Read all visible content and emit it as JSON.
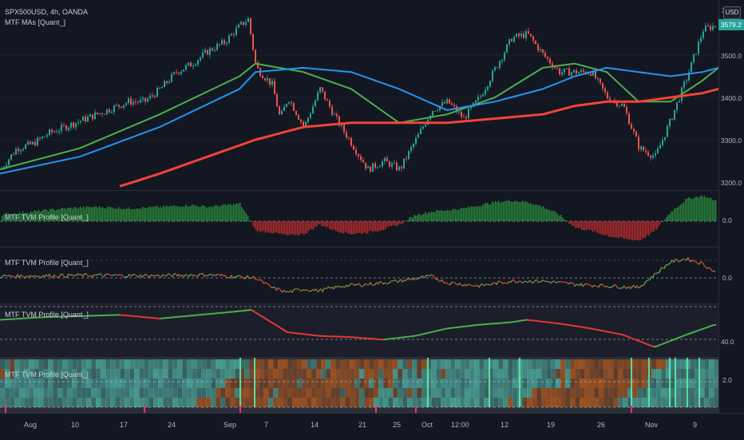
{
  "symbol_line": "SPX500USD, 4h, OANDA",
  "main_indicator": "MTF MAs [Quant_]",
  "currency_badge": "USD",
  "price_badge": "3579.2",
  "main_price_ticks": [
    "3500.0",
    "3400.0",
    "3300.0",
    "3200.0"
  ],
  "main_price_top": "3",
  "sub_panes": [
    {
      "title": "MTF TVM Profile [Quant_]",
      "level": "0.0"
    },
    {
      "title": "MTF TVM Profile [Quant_]",
      "level": "0.0"
    },
    {
      "title": "MTF TVM Profile [Quant_]",
      "level": "40.0"
    },
    {
      "title": "MTF TVM Profile [Quant_]",
      "level": "2.0"
    }
  ],
  "time_axis": [
    "Aug",
    "10",
    "17",
    "24",
    "Sep",
    "7",
    "14",
    "21",
    "25",
    "Oct",
    "12:00",
    "12",
    "19",
    "26",
    "Nov",
    "9"
  ],
  "colors": {
    "background": "#131722",
    "bull": "#26a69a",
    "bear": "#ef5350",
    "ma_fast": "#4caf50",
    "ma_mid": "#2196f3",
    "ma_slow": "#f44336",
    "teal_band": "#4fb3a3",
    "orange_band": "#b55a1e"
  },
  "chart_data": {
    "type": "line",
    "series": [
      {
        "name": "price",
        "x": [
          0,
          20,
          40,
          60,
          80,
          100,
          120,
          140,
          160,
          180,
          200,
          220,
          240,
          260,
          280,
          300,
          310,
          320,
          340,
          350,
          360,
          380,
          400,
          420,
          440,
          460,
          480,
          500,
          520,
          540,
          560,
          580,
          600,
          620,
          640,
          660,
          680,
          700,
          720,
          740,
          760,
          780,
          800,
          820,
          840,
          860,
          880,
          895
        ],
        "values": [
          3230,
          3280,
          3290,
          3315,
          3330,
          3345,
          3360,
          3375,
          3390,
          3390,
          3420,
          3460,
          3480,
          3510,
          3530,
          3570,
          3585,
          3470,
          3430,
          3350,
          3400,
          3330,
          3420,
          3350,
          3290,
          3230,
          3250,
          3230,
          3300,
          3370,
          3390,
          3350,
          3400,
          3470,
          3540,
          3550,
          3500,
          3460,
          3460,
          3460,
          3400,
          3380,
          3280,
          3260,
          3350,
          3450,
          3560,
          3570
        ]
      },
      {
        "name": "ma_fast",
        "x": [
          0,
          100,
          200,
          300,
          320,
          380,
          440,
          500,
          560,
          620,
          680,
          720,
          760,
          800,
          840,
          880,
          900
        ],
        "values": [
          3230,
          3280,
          3360,
          3450,
          3480,
          3460,
          3420,
          3340,
          3360,
          3400,
          3470,
          3480,
          3460,
          3390,
          3390,
          3440,
          3470
        ]
      },
      {
        "name": "ma_mid",
        "x": [
          0,
          100,
          200,
          300,
          320,
          380,
          440,
          500,
          560,
          620,
          680,
          720,
          760,
          800,
          840,
          880,
          900
        ],
        "values": [
          3220,
          3260,
          3330,
          3420,
          3460,
          3470,
          3460,
          3420,
          3370,
          3390,
          3420,
          3450,
          3470,
          3460,
          3450,
          3460,
          3470
        ]
      },
      {
        "name": "ma_slow",
        "x": [
          150,
          200,
          260,
          320,
          380,
          440,
          500,
          560,
          620,
          680,
          720,
          760,
          800,
          840,
          880,
          900
        ],
        "values": [
          3190,
          3220,
          3260,
          3300,
          3330,
          3340,
          3340,
          3340,
          3350,
          3360,
          3380,
          3390,
          3390,
          3400,
          3410,
          3420
        ]
      }
    ],
    "histogram_x": [
      0,
      40,
      80,
      120,
      160,
      200,
      240,
      260,
      280,
      300,
      320,
      340,
      360,
      380,
      400,
      420,
      440,
      460,
      480,
      500,
      520,
      540,
      560,
      580,
      600,
      620,
      640,
      660,
      680,
      700,
      720,
      740,
      760,
      780,
      800,
      820,
      840,
      860,
      880,
      895
    ],
    "histogram_values": [
      0.2,
      0.3,
      0.4,
      0.45,
      0.4,
      0.45,
      0.5,
      0.45,
      0.5,
      0.55,
      -0.3,
      -0.35,
      -0.45,
      -0.4,
      -0.1,
      -0.3,
      -0.4,
      -0.35,
      -0.25,
      -0.1,
      0.2,
      0.3,
      0.35,
      0.4,
      0.5,
      0.6,
      0.65,
      0.6,
      0.45,
      0.2,
      -0.2,
      -0.3,
      -0.45,
      -0.55,
      -0.6,
      -0.3,
      0.3,
      0.7,
      0.8,
      0.65
    ],
    "osc2_x": [
      0,
      100,
      200,
      260,
      320,
      340,
      360,
      380,
      400,
      430,
      460,
      500,
      540,
      560,
      600,
      640,
      680,
      720,
      760,
      800,
      820,
      840,
      860,
      880,
      895
    ],
    "osc2_values": [
      0.05,
      0.08,
      0.07,
      0.1,
      0.0,
      -0.3,
      -0.45,
      -0.35,
      -0.4,
      -0.25,
      -0.2,
      -0.1,
      0.05,
      -0.15,
      -0.25,
      -0.1,
      -0.1,
      -0.2,
      -0.25,
      -0.3,
      0.1,
      0.5,
      0.6,
      0.45,
      0.2
    ],
    "osc3_x": [
      0,
      50,
      100,
      150,
      200,
      250,
      300,
      315,
      340,
      360,
      400,
      440,
      480,
      520,
      560,
      600,
      640,
      660,
      700,
      740,
      780,
      820,
      860,
      895
    ],
    "osc3_values": [
      60,
      62,
      63,
      64,
      61,
      64,
      67,
      68,
      58,
      50,
      47,
      46,
      44,
      47,
      53,
      56,
      58,
      60,
      57,
      53,
      48,
      38,
      48,
      56
    ]
  }
}
